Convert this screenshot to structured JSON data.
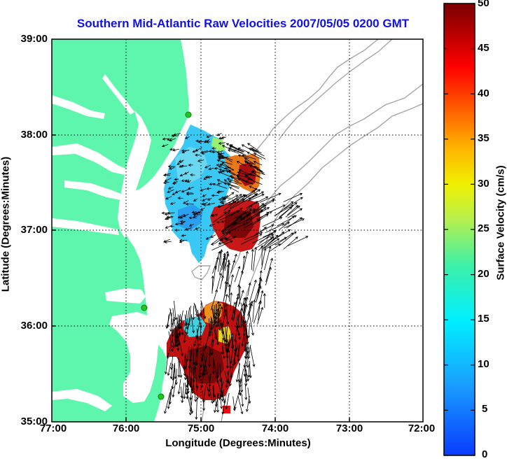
{
  "title": "Southern Mid-Atlantic Raw Velocities 2007/05/05 0200 GMT",
  "x_axis": {
    "label": "Longitude (Degrees:Minutes)",
    "ticks": [
      "77:00",
      "76:00",
      "75:00",
      "74:00",
      "73:00",
      "72:00"
    ]
  },
  "y_axis": {
    "label": "Latitude (Degrees:Minutes)",
    "ticks": [
      "39:00",
      "38:00",
      "37:00",
      "36:00",
      "35:00"
    ]
  },
  "colorbar": {
    "label": "Surface Velocity (cm/s)",
    "ticks": [
      "50",
      "45",
      "40",
      "35",
      "30",
      "25",
      "20",
      "15",
      "10",
      "5",
      "0"
    ],
    "min": 0,
    "max": 50
  },
  "colors": {
    "land": "#5ef6ad",
    "title": "#1010e8",
    "bathymetry": "#a6a6a6",
    "station": "#1ec81e"
  },
  "chart_data": {
    "type": "heatmap",
    "title": "Southern Mid-Atlantic Raw Velocities 2007/05/05 0200 GMT",
    "xlabel": "Longitude (Degrees:Minutes)",
    "ylabel": "Latitude (Degrees:Minutes)",
    "xlim": [
      -77.0,
      -72.0
    ],
    "ylim": [
      35.0,
      39.0
    ],
    "clabel": "Surface Velocity (cm/s)",
    "clim": [
      0,
      50
    ],
    "grid": true,
    "stations": [
      {
        "lon": -75.15,
        "lat": 38.25
      },
      {
        "lon": -75.72,
        "lat": 36.18
      },
      {
        "lon": -75.5,
        "lat": 35.33
      }
    ],
    "regions": [
      {
        "name": "northern-blue",
        "lon": [
          -75.55,
          -74.75
        ],
        "lat": [
          36.8,
          37.95
        ],
        "speed_range": [
          5,
          15
        ]
      },
      {
        "name": "northern-red",
        "lon": [
          -74.78,
          -74.25
        ],
        "lat": [
          36.75,
          37.75
        ],
        "speed_range": [
          35,
          50
        ]
      },
      {
        "name": "southern-red",
        "lon": [
          -75.55,
          -74.6
        ],
        "lat": [
          35.3,
          36.4
        ],
        "speed_range": [
          35,
          50
        ]
      }
    ]
  }
}
